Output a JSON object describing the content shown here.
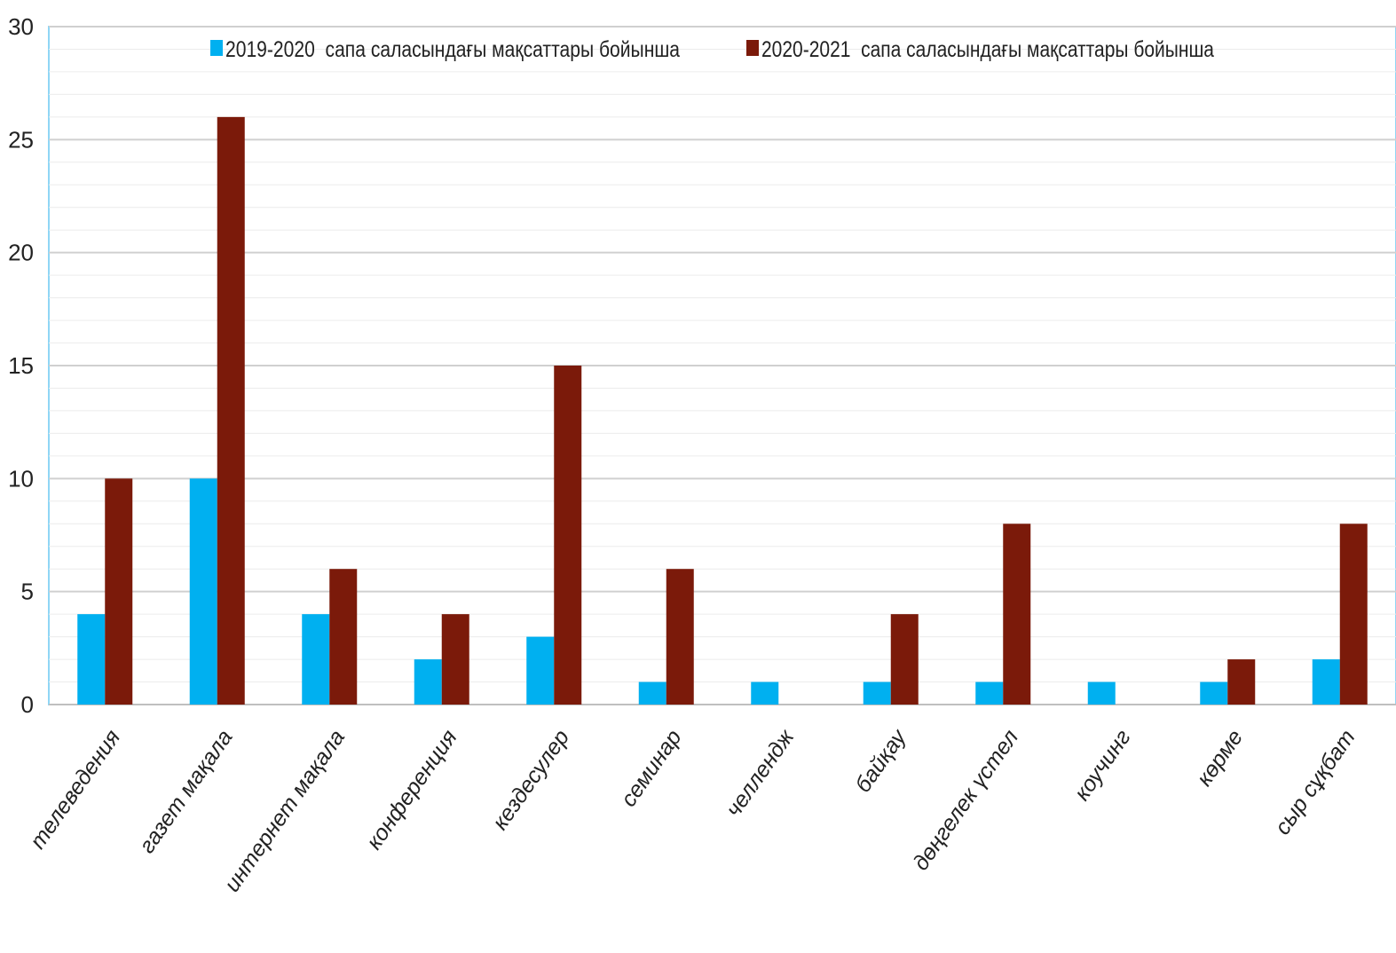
{
  "chart_data": {
    "type": "bar",
    "categories": [
      "телеведения",
      "газет мақала",
      "интернет мақала",
      "конференция",
      "кездесулер",
      "семинар",
      "челлендж",
      "байқау",
      "дөңгелек үстел",
      "коучинг",
      "көрме",
      "сыр сұқбат"
    ],
    "series": [
      {
        "name": "2019-2020  сапа саласындағы мақсаттары бойынша",
        "color": "#00b0f0",
        "values": [
          4,
          10,
          4,
          2,
          3,
          1,
          1,
          1,
          1,
          1,
          1,
          2
        ]
      },
      {
        "name": "2020-2021  сапа саласындағы мақсаттары бойынша",
        "color": "#7b1a0a",
        "values": [
          10,
          26,
          6,
          4,
          15,
          6,
          0,
          4,
          8,
          0,
          2,
          8
        ]
      }
    ],
    "ylim": [
      0,
      30
    ],
    "yticks": [
      "0",
      "5",
      "10",
      "15",
      "20",
      "25",
      "30"
    ],
    "grid": true,
    "legend": "top"
  }
}
